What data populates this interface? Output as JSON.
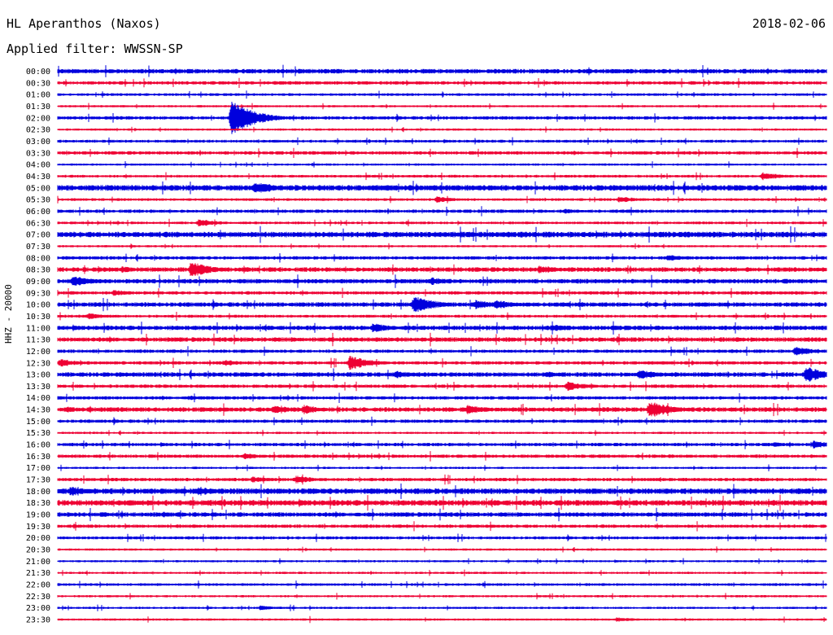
{
  "header": {
    "station": "HL Aperanthos (Naxos)",
    "date": "2018-02-06",
    "filter": "Applied filter: WWSSN-SP"
  },
  "chart_data": {
    "type": "line",
    "title": "HL Aperanthos (Naxos)",
    "subtitle": "Applied filter: WWSSN-SP",
    "date": "2018-02-06",
    "ylabel": "HHZ - 20000",
    "xlabel": "",
    "grid": false,
    "trace_colors": [
      "#0000dd",
      "#ee0033"
    ],
    "rows": [
      "00:00",
      "00:30",
      "01:00",
      "01:30",
      "02:00",
      "02:30",
      "03:00",
      "03:30",
      "04:00",
      "04:30",
      "05:00",
      "05:30",
      "06:00",
      "06:30",
      "07:00",
      "07:30",
      "08:00",
      "08:30",
      "09:00",
      "09:30",
      "10:00",
      "10:30",
      "11:00",
      "11:30",
      "12:00",
      "12:30",
      "13:00",
      "13:30",
      "14:00",
      "14:30",
      "15:00",
      "15:30",
      "16:00",
      "16:30",
      "17:00",
      "17:30",
      "18:00",
      "18:30",
      "19:00",
      "19:30",
      "20:00",
      "20:30",
      "21:00",
      "21:30",
      "22:00",
      "22:30",
      "23:00",
      "23:30"
    ],
    "row_minutes": 30,
    "noise": [
      2,
      1.5,
      1.2,
      1,
      1.5,
      1,
      1.3,
      1.5,
      1,
      1.2,
      2.5,
      1.2,
      1.5,
      1.2,
      2.5,
      1,
      1.5,
      2,
      2,
      1.5,
      2,
      1.3,
      2,
      2,
      1.5,
      1.5,
      2,
      1.5,
      1.5,
      2,
      1.5,
      1,
      1.5,
      1.5,
      1,
      1.5,
      2.5,
      2.5,
      2,
      1.5,
      1.3,
      1,
      1,
      1,
      1.2,
      1,
      1,
      1
    ],
    "events": [
      {
        "row": "02:00",
        "minute": 6.8,
        "amp": 22
      },
      {
        "row": "04:30",
        "minute": 27.5,
        "amp": 5
      },
      {
        "row": "05:00",
        "minute": 7.7,
        "amp": 8
      },
      {
        "row": "05:00",
        "minute": 5.3,
        "amp": 3
      },
      {
        "row": "05:30",
        "minute": 14.8,
        "amp": 4
      },
      {
        "row": "05:30",
        "minute": 21.9,
        "amp": 4
      },
      {
        "row": "06:00",
        "minute": 19.8,
        "amp": 3
      },
      {
        "row": "06:30",
        "minute": 5.5,
        "amp": 5
      },
      {
        "row": "08:00",
        "minute": 23.8,
        "amp": 4
      },
      {
        "row": "08:30",
        "minute": 18.8,
        "amp": 5
      },
      {
        "row": "08:30",
        "minute": 2.5,
        "amp": 4
      },
      {
        "row": "08:30",
        "minute": 5.2,
        "amp": 10
      },
      {
        "row": "09:00",
        "minute": 0.6,
        "amp": 7
      },
      {
        "row": "09:00",
        "minute": 14.6,
        "amp": 5
      },
      {
        "row": "09:30",
        "minute": 2.2,
        "amp": 4
      },
      {
        "row": "10:00",
        "minute": 13.9,
        "amp": 11
      },
      {
        "row": "10:00",
        "minute": 16.3,
        "amp": 6
      },
      {
        "row": "10:00",
        "minute": 17.1,
        "amp": 6
      },
      {
        "row": "10:30",
        "minute": 1.2,
        "amp": 4
      },
      {
        "row": "11:00",
        "minute": 12.3,
        "amp": 6
      },
      {
        "row": "11:00",
        "minute": 19.3,
        "amp": 5
      },
      {
        "row": "12:00",
        "minute": 28.8,
        "amp": 6
      },
      {
        "row": "12:30",
        "minute": 0.1,
        "amp": 5
      },
      {
        "row": "12:30",
        "minute": 11.4,
        "amp": 9
      },
      {
        "row": "12:30",
        "minute": 6.5,
        "amp": 4
      },
      {
        "row": "13:00",
        "minute": 13.2,
        "amp": 5
      },
      {
        "row": "13:00",
        "minute": 19.1,
        "amp": 4
      },
      {
        "row": "13:00",
        "minute": 22.7,
        "amp": 6
      },
      {
        "row": "13:00",
        "minute": 29.2,
        "amp": 10
      },
      {
        "row": "13:30",
        "minute": 19.9,
        "amp": 6
      },
      {
        "row": "14:00",
        "minute": 5.1,
        "amp": 3
      },
      {
        "row": "14:30",
        "minute": 8.4,
        "amp": 6
      },
      {
        "row": "14:30",
        "minute": 9.6,
        "amp": 6
      },
      {
        "row": "14:30",
        "minute": 16.0,
        "amp": 6
      },
      {
        "row": "14:30",
        "minute": 23.1,
        "amp": 11
      },
      {
        "row": "14:30",
        "minute": 0.3,
        "amp": 4
      },
      {
        "row": "16:00",
        "minute": 29.5,
        "amp": 5
      },
      {
        "row": "16:00",
        "minute": 27.9,
        "amp": 3
      },
      {
        "row": "16:30",
        "minute": 7.3,
        "amp": 4
      },
      {
        "row": "17:30",
        "minute": 9.3,
        "amp": 5
      },
      {
        "row": "17:30",
        "minute": 7.6,
        "amp": 4
      },
      {
        "row": "18:00",
        "minute": 0.5,
        "amp": 6
      },
      {
        "row": "18:00",
        "minute": 5.5,
        "amp": 6
      },
      {
        "row": "18:30",
        "minute": 19.5,
        "amp": 3
      },
      {
        "row": "19:00",
        "minute": 4.1,
        "amp": 4
      },
      {
        "row": "23:00",
        "minute": 7.9,
        "amp": 3
      },
      {
        "row": "23:30",
        "minute": 21.8,
        "amp": 3
      }
    ]
  }
}
